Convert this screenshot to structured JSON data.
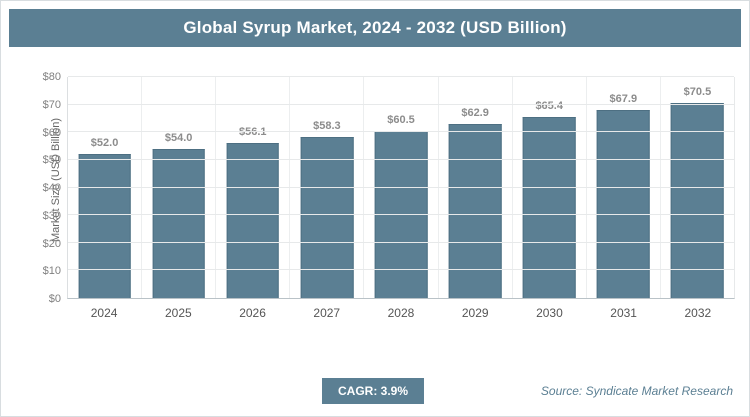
{
  "header": {
    "title": "Global Syrup Market, 2024 - 2032 (USD Billion)"
  },
  "chart_data": {
    "type": "bar",
    "title": "Global Syrup Market, 2024 - 2032 (USD Billion)",
    "categories": [
      "2024",
      "2025",
      "2026",
      "2027",
      "2028",
      "2029",
      "2030",
      "2031",
      "2032"
    ],
    "values": [
      52.0,
      54.0,
      56.1,
      58.3,
      60.5,
      62.9,
      65.4,
      67.9,
      70.5
    ],
    "value_labels": [
      "$52.0",
      "$54.0",
      "$56.1",
      "$58.3",
      "$60.5",
      "$62.9",
      "$65.4",
      "$67.9",
      "$70.5"
    ],
    "xlabel": "",
    "ylabel": "Market Size (USD Billion)",
    "ylim": [
      0,
      80
    ],
    "yticks": [
      0,
      10,
      20,
      30,
      40,
      50,
      60,
      70,
      80
    ],
    "ytick_labels": [
      "$0",
      "$10",
      "$20",
      "$30",
      "$40",
      "$50",
      "$60",
      "$70",
      "$80"
    ],
    "grid": "on",
    "legend": "none",
    "bar_color": "#5b7f93"
  },
  "footer": {
    "cagr_label": "CAGR: 3.9%",
    "source": "Source: Syndicate Market Research"
  }
}
